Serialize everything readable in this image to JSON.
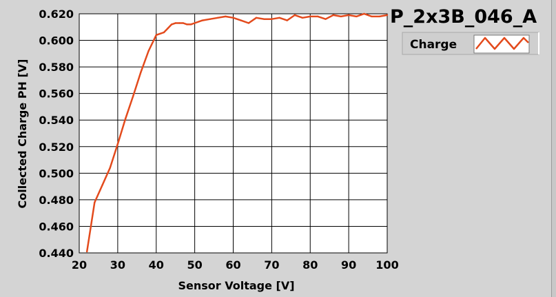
{
  "chart_data": {
    "type": "line",
    "title": "P_2x3B_046_A",
    "xlabel": "Sensor Voltage [V]",
    "ylabel": "Collected Charge PH [V]",
    "xlim": [
      20,
      100
    ],
    "ylim": [
      0.44,
      0.62
    ],
    "x_ticks": [
      20,
      30,
      40,
      50,
      60,
      70,
      80,
      90,
      100
    ],
    "y_ticks": [
      "0.440",
      "0.460",
      "0.480",
      "0.500",
      "0.520",
      "0.540",
      "0.560",
      "0.580",
      "0.600",
      "0.620"
    ],
    "grid": true,
    "legend_position": "top-right",
    "series_color": "#e34a1c",
    "series": [
      {
        "name": "Charge",
        "x": [
          22,
          24,
          26,
          28,
          30,
          32,
          34,
          36,
          38,
          40,
          41,
          42,
          43,
          44,
          45,
          46,
          47,
          48,
          49,
          50,
          52,
          54,
          56,
          58,
          60,
          62,
          64,
          66,
          68,
          70,
          72,
          74,
          76,
          78,
          80,
          82,
          84,
          86,
          88,
          90,
          92,
          94,
          96,
          98,
          100
        ],
        "y": [
          0.441,
          0.478,
          0.491,
          0.504,
          0.522,
          0.541,
          0.558,
          0.576,
          0.592,
          0.604,
          0.605,
          0.606,
          0.609,
          0.612,
          0.613,
          0.613,
          0.613,
          0.612,
          0.612,
          0.613,
          0.615,
          0.616,
          0.617,
          0.618,
          0.617,
          0.615,
          0.613,
          0.617,
          0.616,
          0.616,
          0.617,
          0.615,
          0.619,
          0.617,
          0.618,
          0.618,
          0.616,
          0.619,
          0.618,
          0.619,
          0.618,
          0.62,
          0.618,
          0.618,
          0.619
        ]
      }
    ]
  }
}
